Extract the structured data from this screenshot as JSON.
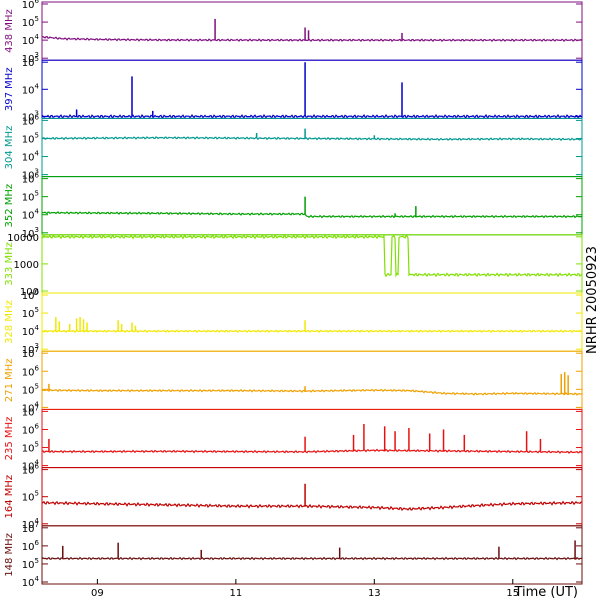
{
  "side_label": "NRHR 20050923",
  "chart_data": {
    "type": "line",
    "x_axis": {
      "label": "Time (UT)",
      "range": [
        8.2,
        16.0
      ],
      "ticks": [
        {
          "value": 9,
          "label": "09"
        },
        {
          "value": 11,
          "label": "11"
        },
        {
          "value": 13,
          "label": "13"
        },
        {
          "value": 15,
          "label": "15"
        }
      ]
    },
    "panels": [
      {
        "name": "438 MHz",
        "color": "#7f0f7f",
        "scale": "log",
        "ylim": [
          1000,
          1000000
        ],
        "ticks": [
          {
            "value": 1000,
            "label": "10",
            "exp": "3"
          },
          {
            "value": 10000,
            "label": "10",
            "exp": "4"
          },
          {
            "value": 100000,
            "label": "10",
            "exp": "5"
          },
          {
            "value": 1000000,
            "label": "10",
            "exp": "6"
          }
        ],
        "baseline": [
          [
            8.2,
            15000
          ],
          [
            8.5,
            12000
          ],
          [
            9.0,
            11000
          ],
          [
            9.5,
            10500
          ],
          [
            10.0,
            10200
          ],
          [
            12.0,
            10000
          ],
          [
            14.0,
            10000
          ],
          [
            16.0,
            10000
          ]
        ],
        "spikes": [
          [
            10.7,
            150000
          ],
          [
            12.0,
            50000
          ],
          [
            12.05,
            35000
          ],
          [
            13.4,
            25000
          ]
        ]
      },
      {
        "name": "397 MHz",
        "color": "#0000cc",
        "scale": "log",
        "ylim": [
          1000,
          100000
        ],
        "ticks": [
          {
            "value": 1000,
            "label": "10",
            "exp": "3"
          },
          {
            "value": 10000,
            "label": "10",
            "exp": "4"
          },
          {
            "value": 100000,
            "label": "10",
            "exp": "5"
          }
        ],
        "baseline": [
          [
            8.2,
            1000
          ],
          [
            16.0,
            1000
          ]
        ],
        "spikes": [
          [
            8.7,
            1800
          ],
          [
            9.5,
            30000
          ],
          [
            9.8,
            1600
          ],
          [
            12.0,
            100000
          ],
          [
            13.4,
            18000
          ]
        ]
      },
      {
        "name": "304 MHz",
        "color": "#00998f",
        "scale": "log",
        "ylim": [
          1000,
          1000000
        ],
        "ticks": [
          {
            "value": 1000,
            "label": "10",
            "exp": "3"
          },
          {
            "value": 10000,
            "label": "10",
            "exp": "4"
          },
          {
            "value": 100000,
            "label": "10",
            "exp": "5"
          },
          {
            "value": 1000000,
            "label": "10",
            "exp": "6"
          }
        ],
        "baseline": [
          [
            8.2,
            100000
          ],
          [
            9.0,
            105000
          ],
          [
            10.0,
            110000
          ],
          [
            11.0,
            105000
          ],
          [
            12.0,
            100000
          ],
          [
            13.0,
            95000
          ],
          [
            14.0,
            90000
          ],
          [
            15.0,
            95000
          ],
          [
            16.0,
            90000
          ]
        ],
        "spikes": [
          [
            11.3,
            200000
          ],
          [
            12.0,
            350000
          ],
          [
            13.0,
            150000
          ]
        ]
      },
      {
        "name": "352 MHz",
        "color": "#00a000",
        "scale": "log",
        "ylim": [
          1000,
          1000000
        ],
        "ticks": [
          {
            "value": 1000,
            "label": "10",
            "exp": "3"
          },
          {
            "value": 10000,
            "label": "10",
            "exp": "4"
          },
          {
            "value": 100000,
            "label": "10",
            "exp": "5"
          },
          {
            "value": 1000000,
            "label": "10",
            "exp": "6"
          }
        ],
        "baseline": [
          [
            8.2,
            13000
          ],
          [
            9.0,
            12500
          ],
          [
            10.0,
            12000
          ],
          [
            11.0,
            11000
          ],
          [
            12.0,
            11000
          ],
          [
            12.02,
            8000
          ],
          [
            16.0,
            8000
          ]
        ],
        "spikes": [
          [
            12.0,
            100000
          ],
          [
            13.3,
            12000
          ],
          [
            13.6,
            30000
          ]
        ]
      },
      {
        "name": "333 MHz",
        "color": "#80e000",
        "scale": "log",
        "ylim": [
          100,
          10000
        ],
        "ticks": [
          {
            "value": 100,
            "label": "100"
          },
          {
            "value": 1000,
            "label": "1000"
          },
          {
            "value": 10000,
            "label": "10000"
          }
        ],
        "baseline": [
          [
            8.2,
            10000
          ],
          [
            13.15,
            10000
          ],
          [
            13.15,
            400
          ],
          [
            13.25,
            400
          ],
          [
            13.25,
            10000
          ],
          [
            13.3,
            10000
          ],
          [
            13.3,
            400
          ],
          [
            13.35,
            400
          ],
          [
            13.35,
            10000
          ],
          [
            13.5,
            10000
          ],
          [
            13.5,
            400
          ],
          [
            16.0,
            400
          ]
        ],
        "spikes": []
      },
      {
        "name": "328 MHz",
        "color": "#f0e800",
        "scale": "log",
        "ylim": [
          1000,
          1000000
        ],
        "ticks": [
          {
            "value": 1000,
            "label": "10",
            "exp": "3"
          },
          {
            "value": 10000,
            "label": "10",
            "exp": "4"
          },
          {
            "value": 100000,
            "label": "10",
            "exp": "5"
          },
          {
            "value": 1000000,
            "label": "10",
            "exp": "6"
          }
        ],
        "baseline": [
          [
            8.2,
            10000
          ],
          [
            16.0,
            10000
          ]
        ],
        "spikes": [
          [
            8.4,
            60000
          ],
          [
            8.45,
            35000
          ],
          [
            8.6,
            25000
          ],
          [
            8.7,
            50000
          ],
          [
            8.75,
            60000
          ],
          [
            8.8,
            45000
          ],
          [
            8.85,
            30000
          ],
          [
            9.3,
            40000
          ],
          [
            9.35,
            25000
          ],
          [
            9.5,
            30000
          ],
          [
            9.55,
            20000
          ],
          [
            12.0,
            40000
          ]
        ]
      },
      {
        "name": "271 MHz",
        "color": "#f0a000",
        "scale": "log",
        "ylim": [
          10000,
          10000000
        ],
        "ticks": [
          {
            "value": 10000,
            "label": "10",
            "exp": "4"
          },
          {
            "value": 100000,
            "label": "10",
            "exp": "5"
          },
          {
            "value": 1000000,
            "label": "10",
            "exp": "6"
          },
          {
            "value": 10000000,
            "label": "10",
            "exp": "7"
          }
        ],
        "baseline": [
          [
            8.2,
            90000
          ],
          [
            9.0,
            85000
          ],
          [
            10.0,
            85000
          ],
          [
            11.0,
            85000
          ],
          [
            12.0,
            80000
          ],
          [
            13.0,
            90000
          ],
          [
            13.5,
            85000
          ],
          [
            14.0,
            60000
          ],
          [
            14.5,
            55000
          ],
          [
            15.0,
            60000
          ],
          [
            16.0,
            55000
          ]
        ],
        "spikes": [
          [
            8.3,
            200000
          ],
          [
            12.0,
            150000
          ],
          [
            15.7,
            700000
          ],
          [
            15.75,
            900000
          ],
          [
            15.8,
            600000
          ]
        ]
      },
      {
        "name": "235 MHz",
        "color": "#e81010",
        "scale": "log",
        "ylim": [
          10000,
          10000000
        ],
        "ticks": [
          {
            "value": 10000,
            "label": "10",
            "exp": "4"
          },
          {
            "value": 100000,
            "label": "10",
            "exp": "5"
          },
          {
            "value": 1000000,
            "label": "10",
            "exp": "6"
          },
          {
            "value": 10000000,
            "label": "10",
            "exp": "7"
          }
        ],
        "baseline": [
          [
            8.2,
            60000
          ],
          [
            9.0,
            60000
          ],
          [
            10.0,
            62000
          ],
          [
            11.0,
            60000
          ],
          [
            12.0,
            58000
          ],
          [
            13.0,
            70000
          ],
          [
            14.0,
            65000
          ],
          [
            15.0,
            60000
          ],
          [
            16.0,
            55000
          ]
        ],
        "spikes": [
          [
            8.3,
            300000
          ],
          [
            12.0,
            400000
          ],
          [
            12.7,
            500000
          ],
          [
            12.85,
            2000000
          ],
          [
            13.15,
            1500000
          ],
          [
            13.3,
            800000
          ],
          [
            13.5,
            1200000
          ],
          [
            13.8,
            600000
          ],
          [
            14.0,
            1000000
          ],
          [
            14.3,
            500000
          ],
          [
            15.2,
            800000
          ],
          [
            15.4,
            300000
          ]
        ]
      },
      {
        "name": "164 MHz",
        "color": "#c00000",
        "scale": "log",
        "ylim": [
          10000,
          1000000
        ],
        "ticks": [
          {
            "value": 10000,
            "label": "10",
            "exp": "4"
          },
          {
            "value": 100000,
            "label": "10",
            "exp": "5"
          },
          {
            "value": 1000000,
            "label": "10",
            "exp": "6"
          }
        ],
        "baseline": [
          [
            8.2,
            60000
          ],
          [
            9.0,
            55000
          ],
          [
            10.0,
            50000
          ],
          [
            11.0,
            45000
          ],
          [
            12.0,
            45000
          ],
          [
            13.0,
            40000
          ],
          [
            13.5,
            35000
          ],
          [
            14.0,
            40000
          ],
          [
            15.0,
            55000
          ],
          [
            16.0,
            60000
          ]
        ],
        "spikes": [
          [
            12.0,
            300000
          ]
        ]
      },
      {
        "name": "148 MHz",
        "color": "#6b0d0d",
        "scale": "log",
        "ylim": [
          10000,
          10000000
        ],
        "ticks": [
          {
            "value": 10000,
            "label": "10",
            "exp": "4"
          },
          {
            "value": 100000,
            "label": "10",
            "exp": "5"
          },
          {
            "value": 1000000,
            "label": "10",
            "exp": "6"
          },
          {
            "value": 10000000,
            "label": "10",
            "exp": "7"
          }
        ],
        "baseline": [
          [
            8.2,
            200000
          ],
          [
            10.0,
            200000
          ],
          [
            12.0,
            200000
          ],
          [
            14.0,
            200000
          ],
          [
            16.0,
            200000
          ]
        ],
        "spikes": [
          [
            8.5,
            1000000
          ],
          [
            9.3,
            1500000
          ],
          [
            10.5,
            600000
          ],
          [
            12.5,
            800000
          ],
          [
            14.8,
            900000
          ],
          [
            15.9,
            2000000
          ]
        ]
      }
    ]
  }
}
